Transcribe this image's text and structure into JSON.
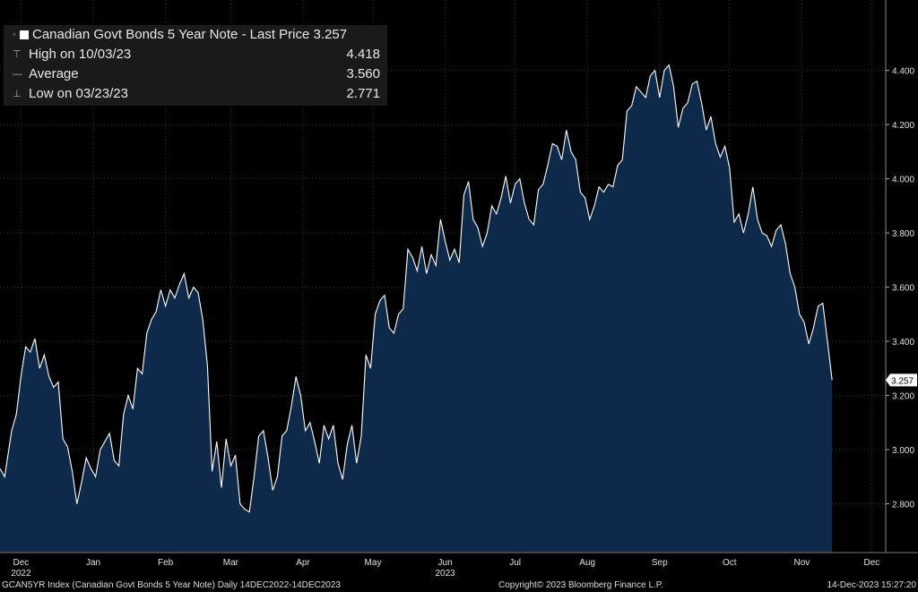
{
  "legend": {
    "title": "Canadian Govt Bonds 5 Year Note - Last Price",
    "last_price": "3.257",
    "high_label": "High on 10/03/23",
    "high_value": "4.418",
    "average_label": "Average",
    "average_value": "3.560",
    "low_label": "Low on 03/23/23",
    "low_value": "2.771"
  },
  "footer": {
    "left": "GCAN5YR Index (Canadian Govt Bonds 5 Year Note)  Daily 14DEC2022-14DEC2023",
    "center": "Copyright© 2023 Bloomberg Finance L.P.",
    "right": "14-Dec-2023 15:27:20"
  },
  "colors": {
    "background": "#000000",
    "area_fill": "#0d2a4a",
    "line": "#ffffff",
    "grid": "#3a3a3a"
  },
  "chart_data": {
    "type": "area",
    "title": "Canadian Govt Bonds 5 Year Note - Last Price",
    "xlabel": "",
    "ylabel": "",
    "ylim": [
      2.62,
      4.66
    ],
    "yticks": [
      2.8,
      3.0,
      3.2,
      3.4,
      3.6,
      3.8,
      4.0,
      4.2,
      4.4
    ],
    "ytick_labels": [
      "2.800",
      "3.000",
      "3.200",
      "3.400",
      "3.600",
      "3.800",
      "4.000",
      "4.200",
      "4.400"
    ],
    "grid": true,
    "last_value_label": "3.257",
    "x_ticks": [
      {
        "label": "Dec",
        "sublabel": "2022",
        "day": 17
      },
      {
        "label": "Jan",
        "day": 48
      },
      {
        "label": "Feb",
        "day": 79
      },
      {
        "label": "Mar",
        "day": 107
      },
      {
        "label": "Apr",
        "day": 138
      },
      {
        "label": "May",
        "day": 168
      },
      {
        "label": "Jun",
        "sublabel": "2023",
        "day": 199
      },
      {
        "label": "Jul",
        "day": 229
      },
      {
        "label": "Aug",
        "day": 260
      },
      {
        "label": "Sep",
        "day": 291
      },
      {
        "label": "Oct",
        "day": 321
      },
      {
        "label": "Nov",
        "day": 352
      },
      {
        "label": "Dec",
        "day": 382
      }
    ],
    "x_range": [
      0,
      365
    ],
    "series": [
      {
        "values": [
          [
            0,
            2.93
          ],
          [
            2,
            2.9
          ],
          [
            5,
            3.07
          ],
          [
            7,
            3.13
          ],
          [
            9,
            3.27
          ],
          [
            11,
            3.38
          ],
          [
            13,
            3.36
          ],
          [
            15,
            3.41
          ],
          [
            17,
            3.3
          ],
          [
            19,
            3.35
          ],
          [
            21,
            3.27
          ],
          [
            23,
            3.23
          ],
          [
            25,
            3.25
          ],
          [
            27,
            3.04
          ],
          [
            29,
            3.01
          ],
          [
            31,
            2.92
          ],
          [
            33,
            2.8
          ],
          [
            35,
            2.88
          ],
          [
            37,
            2.97
          ],
          [
            39,
            2.93
          ],
          [
            41,
            2.9
          ],
          [
            43,
            3.0
          ],
          [
            45,
            3.03
          ],
          [
            47,
            3.06
          ],
          [
            49,
            2.96
          ],
          [
            51,
            2.94
          ],
          [
            53,
            3.13
          ],
          [
            55,
            3.2
          ],
          [
            57,
            3.15
          ],
          [
            59,
            3.3
          ],
          [
            61,
            3.28
          ],
          [
            63,
            3.43
          ],
          [
            65,
            3.48
          ],
          [
            67,
            3.51
          ],
          [
            69,
            3.59
          ],
          [
            71,
            3.53
          ],
          [
            73,
            3.59
          ],
          [
            75,
            3.56
          ],
          [
            77,
            3.61
          ],
          [
            79,
            3.65
          ],
          [
            81,
            3.56
          ],
          [
            83,
            3.6
          ],
          [
            85,
            3.58
          ],
          [
            87,
            3.48
          ],
          [
            89,
            3.31
          ],
          [
            91,
            2.92
          ],
          [
            93,
            3.03
          ],
          [
            95,
            2.86
          ],
          [
            97,
            3.04
          ],
          [
            99,
            2.94
          ],
          [
            101,
            2.98
          ],
          [
            103,
            2.8
          ],
          [
            105,
            2.78
          ],
          [
            107,
            2.77
          ],
          [
            109,
            2.9
          ],
          [
            111,
            3.05
          ],
          [
            113,
            3.07
          ],
          [
            115,
            2.97
          ],
          [
            117,
            2.85
          ],
          [
            119,
            2.9
          ],
          [
            121,
            3.05
          ],
          [
            123,
            3.07
          ],
          [
            125,
            3.16
          ],
          [
            127,
            3.27
          ],
          [
            129,
            3.2
          ],
          [
            131,
            3.07
          ],
          [
            133,
            3.1
          ],
          [
            135,
            3.03
          ],
          [
            137,
            2.95
          ],
          [
            139,
            3.09
          ],
          [
            141,
            3.04
          ],
          [
            143,
            3.09
          ],
          [
            145,
            2.95
          ],
          [
            147,
            2.89
          ],
          [
            149,
            3.02
          ],
          [
            151,
            3.09
          ],
          [
            153,
            2.95
          ],
          [
            155,
            3.05
          ],
          [
            157,
            3.35
          ],
          [
            159,
            3.3
          ],
          [
            161,
            3.5
          ],
          [
            163,
            3.55
          ],
          [
            165,
            3.57
          ],
          [
            167,
            3.45
          ],
          [
            169,
            3.43
          ],
          [
            171,
            3.5
          ],
          [
            173,
            3.52
          ],
          [
            175,
            3.74
          ],
          [
            177,
            3.71
          ],
          [
            179,
            3.66
          ],
          [
            181,
            3.75
          ],
          [
            183,
            3.65
          ],
          [
            185,
            3.72
          ],
          [
            187,
            3.68
          ],
          [
            189,
            3.85
          ],
          [
            191,
            3.77
          ],
          [
            193,
            3.7
          ],
          [
            195,
            3.74
          ],
          [
            197,
            3.69
          ],
          [
            199,
            3.94
          ],
          [
            201,
            3.99
          ],
          [
            203,
            3.85
          ],
          [
            205,
            3.82
          ],
          [
            207,
            3.75
          ],
          [
            209,
            3.8
          ],
          [
            211,
            3.9
          ],
          [
            213,
            3.87
          ],
          [
            215,
            3.93
          ],
          [
            217,
            4.01
          ],
          [
            219,
            3.91
          ],
          [
            221,
            3.98
          ],
          [
            223,
            4.0
          ],
          [
            225,
            3.91
          ],
          [
            227,
            3.85
          ],
          [
            229,
            3.83
          ],
          [
            231,
            3.96
          ],
          [
            233,
            3.98
          ],
          [
            235,
            4.05
          ],
          [
            237,
            4.13
          ],
          [
            239,
            4.12
          ],
          [
            241,
            4.07
          ],
          [
            243,
            4.18
          ],
          [
            245,
            4.1
          ],
          [
            247,
            4.07
          ],
          [
            249,
            3.95
          ],
          [
            251,
            3.93
          ],
          [
            253,
            3.85
          ],
          [
            255,
            3.9
          ],
          [
            257,
            3.97
          ],
          [
            259,
            3.95
          ],
          [
            261,
            3.98
          ],
          [
            263,
            3.97
          ],
          [
            265,
            4.05
          ],
          [
            267,
            4.07
          ],
          [
            269,
            4.25
          ],
          [
            271,
            4.27
          ],
          [
            273,
            4.34
          ],
          [
            275,
            4.32
          ],
          [
            277,
            4.3
          ],
          [
            279,
            4.38
          ],
          [
            281,
            4.4
          ],
          [
            283,
            4.3
          ],
          [
            285,
            4.4
          ],
          [
            287,
            4.42
          ],
          [
            289,
            4.34
          ],
          [
            291,
            4.19
          ],
          [
            293,
            4.26
          ],
          [
            295,
            4.28
          ],
          [
            297,
            4.35
          ],
          [
            299,
            4.36
          ],
          [
            301,
            4.28
          ],
          [
            303,
            4.18
          ],
          [
            305,
            4.23
          ],
          [
            307,
            4.13
          ],
          [
            309,
            4.08
          ],
          [
            311,
            4.12
          ],
          [
            313,
            4.04
          ],
          [
            315,
            3.84
          ],
          [
            317,
            3.87
          ],
          [
            319,
            3.8
          ],
          [
            321,
            3.87
          ],
          [
            323,
            3.97
          ],
          [
            325,
            3.85
          ],
          [
            327,
            3.8
          ],
          [
            329,
            3.79
          ],
          [
            331,
            3.75
          ],
          [
            333,
            3.81
          ],
          [
            335,
            3.83
          ],
          [
            337,
            3.76
          ],
          [
            339,
            3.65
          ],
          [
            341,
            3.6
          ],
          [
            343,
            3.5
          ],
          [
            345,
            3.47
          ],
          [
            347,
            3.39
          ],
          [
            349,
            3.45
          ],
          [
            351,
            3.53
          ],
          [
            353,
            3.54
          ],
          [
            355,
            3.4
          ],
          [
            357,
            3.257
          ]
        ]
      }
    ]
  }
}
